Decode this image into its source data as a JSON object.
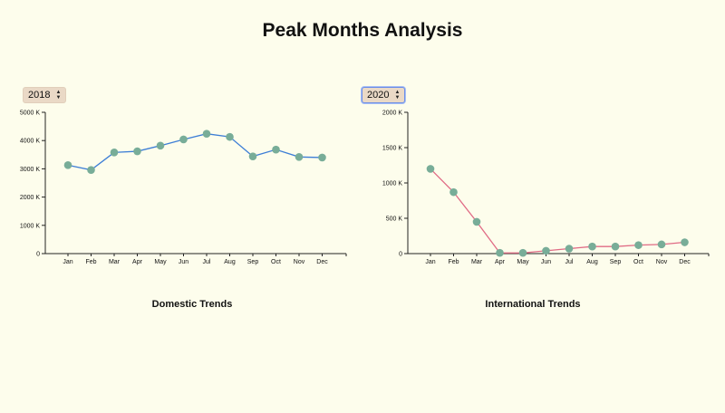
{
  "page": {
    "title": "Peak Months Analysis"
  },
  "controls": {
    "domestic_year": "2018",
    "international_year": "2020"
  },
  "colors": {
    "background": "#fdfdec",
    "domestic_line": "#3d7ed6",
    "international_line": "#e06b85",
    "point": "#78ad98",
    "select_bg": "#ead9c6"
  },
  "chart_data": [
    {
      "type": "line",
      "title": "Domestic Trends",
      "categories": [
        "Jan",
        "Feb",
        "Mar",
        "Apr",
        "May",
        "Jun",
        "Jul",
        "Aug",
        "Sep",
        "Oct",
        "Nov",
        "Dec"
      ],
      "values": [
        3130,
        2960,
        3580,
        3620,
        3820,
        4040,
        4240,
        4130,
        3440,
        3680,
        3420,
        3400
      ],
      "ylim": [
        0,
        5000
      ],
      "yticks": [
        0,
        1000,
        2000,
        3000,
        4000,
        5000
      ],
      "ytick_labels": [
        "0",
        "1000 K",
        "2000 K",
        "3000 K",
        "4000 K",
        "5000 K"
      ],
      "grid": false
    },
    {
      "type": "line",
      "title": "International Trends",
      "categories": [
        "Jan",
        "Feb",
        "Mar",
        "Apr",
        "May",
        "Jun",
        "Jul",
        "Aug",
        "Sep",
        "Oct",
        "Nov",
        "Dec"
      ],
      "values": [
        1200,
        870,
        450,
        10,
        10,
        40,
        70,
        100,
        100,
        120,
        130,
        160
      ],
      "ylim": [
        0,
        2000
      ],
      "yticks": [
        0,
        500,
        1000,
        1500,
        2000
      ],
      "ytick_labels": [
        "0",
        "500 K",
        "1000 K",
        "1500 K",
        "2000 K"
      ],
      "grid": false
    }
  ]
}
